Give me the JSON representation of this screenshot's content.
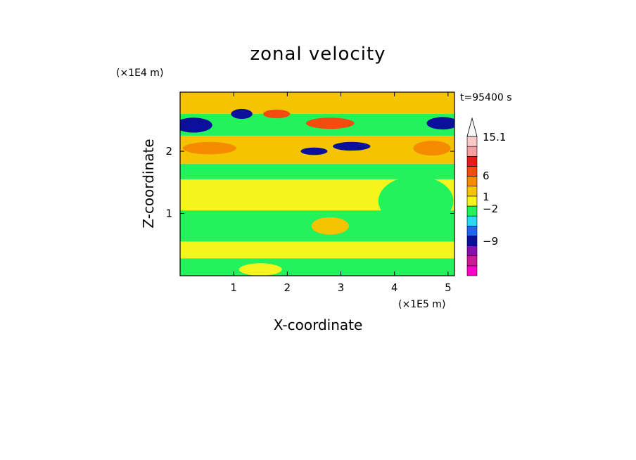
{
  "chart_data": {
    "type": "heatmap",
    "title": "zonal velocity",
    "xlabel": "X-coordinate",
    "ylabel": "Z-coordinate",
    "x_multiplier": "(×1E5 m)",
    "y_multiplier": "(×1E4 m)",
    "time_label": "t=95400 s",
    "xlim": [
      0,
      5.12
    ],
    "ylim": [
      0,
      2.95
    ],
    "x_ticks": [
      1,
      2,
      3,
      4,
      5
    ],
    "y_ticks": [
      1,
      2
    ],
    "colorbar": {
      "labels": [
        "15.1",
        "6",
        "1",
        "−2",
        "−9"
      ],
      "colors": [
        "#ff00cc",
        "#cc1a99",
        "#880fa8",
        "#0a109a",
        "#1f66f5",
        "#28d8f5",
        "#22f25c",
        "#f5f51d",
        "#f5c400",
        "#f58c00",
        "#f24d0f",
        "#e81a1a",
        "#f5a0a0",
        "#f7c9c9"
      ],
      "extend_max": true
    },
    "bands": [
      {
        "z": [
          0.0,
          0.28
        ],
        "color": "#22f25c"
      },
      {
        "z": [
          0.28,
          0.55
        ],
        "color": "#f5f51d"
      },
      {
        "z": [
          0.55,
          1.05
        ],
        "color": "#22f25c"
      },
      {
        "z": [
          1.05,
          1.55
        ],
        "color": "#f5f51d"
      },
      {
        "z": [
          1.55,
          1.8
        ],
        "color": "#22f25c"
      },
      {
        "z": [
          1.8,
          2.25
        ],
        "color": "#f5c400"
      },
      {
        "z": [
          2.25,
          2.6
        ],
        "color": "#22f25c"
      },
      {
        "z": [
          2.6,
          2.95
        ],
        "color": "#f5c400"
      }
    ],
    "features": [
      {
        "x": 0.25,
        "z": 2.42,
        "rx": 0.35,
        "rz": 0.12,
        "color": "#0a109a"
      },
      {
        "x": 0.55,
        "z": 2.05,
        "rx": 0.5,
        "rz": 0.1,
        "color": "#f58c00"
      },
      {
        "x": 1.15,
        "z": 2.6,
        "rx": 0.2,
        "rz": 0.08,
        "color": "#0a109a"
      },
      {
        "x": 1.8,
        "z": 2.6,
        "rx": 0.25,
        "rz": 0.07,
        "color": "#f24d0f"
      },
      {
        "x": 2.8,
        "z": 2.45,
        "rx": 0.45,
        "rz": 0.09,
        "color": "#f24d0f"
      },
      {
        "x": 2.5,
        "z": 2.0,
        "rx": 0.25,
        "rz": 0.06,
        "color": "#0a109a"
      },
      {
        "x": 3.2,
        "z": 2.08,
        "rx": 0.35,
        "rz": 0.07,
        "color": "#0a109a"
      },
      {
        "x": 4.9,
        "z": 2.45,
        "rx": 0.3,
        "rz": 0.1,
        "color": "#0a109a"
      },
      {
        "x": 4.7,
        "z": 2.05,
        "rx": 0.35,
        "rz": 0.12,
        "color": "#f58c00"
      },
      {
        "x": 2.8,
        "z": 0.8,
        "rx": 0.35,
        "rz": 0.14,
        "color": "#f5c400"
      },
      {
        "x": 4.4,
        "z": 1.2,
        "rx": 0.7,
        "rz": 0.4,
        "color": "#22f25c"
      },
      {
        "x": 1.5,
        "z": 0.1,
        "rx": 0.4,
        "rz": 0.1,
        "color": "#f5f51d"
      }
    ]
  }
}
